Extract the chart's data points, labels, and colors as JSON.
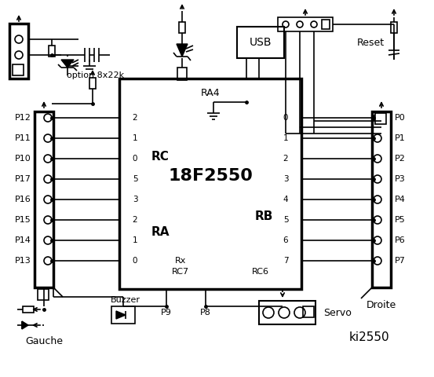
{
  "bg_color": "#ffffff",
  "title": "ki2550",
  "chip_label": "18F2550",
  "chip_sub": "RA4",
  "rc_label": "RC",
  "ra_label": "RA",
  "rb_label": "RB",
  "rc_pins": [
    "2",
    "1",
    "0",
    "5",
    "3",
    "2",
    "1",
    "0"
  ],
  "rb_pins": [
    "0",
    "1",
    "2",
    "3",
    "4",
    "5",
    "6",
    "7"
  ],
  "left_labels": [
    "P12",
    "P11",
    "P10",
    "P17",
    "P16",
    "P15",
    "P14",
    "P13"
  ],
  "right_labels": [
    "P0",
    "P1",
    "P2",
    "P3",
    "P4",
    "P5",
    "P6",
    "P7"
  ],
  "gauche_label": "Gauche",
  "droite_label": "Droite",
  "option_label": "option 8x22k",
  "reset_label": "Reset",
  "rx_label": "Rx",
  "rc7_label": "RC7",
  "rc6_label": "RC6",
  "usb_label": "USB",
  "buzzer_label": "Buzzer",
  "servo_label": "Servo",
  "p9_label": "P9",
  "p8_label": "P8"
}
